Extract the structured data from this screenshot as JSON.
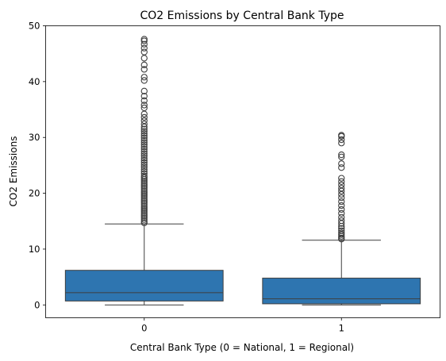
{
  "chart_data": {
    "type": "box",
    "title": "CO2 Emissions by Central Bank Type",
    "xlabel": "Central Bank Type (0 = National, 1 = Regional)",
    "ylabel": "CO2 Emissions",
    "categories": [
      "0",
      "1"
    ],
    "ylim": [
      -2.3,
      50
    ],
    "yticks": [
      0,
      10,
      20,
      30,
      40,
      50
    ],
    "grid": false,
    "box_color": "#2e75b0",
    "boxes": [
      {
        "category": "0",
        "whisker_low": 0.0,
        "q1": 0.7,
        "median": 2.2,
        "q3": 6.2,
        "whisker_high": 14.5,
        "outliers": [
          14.7,
          15.0,
          15.3,
          15.6,
          15.9,
          16.2,
          16.5,
          16.8,
          17.1,
          17.4,
          17.7,
          18.0,
          18.3,
          18.6,
          18.9,
          19.2,
          19.5,
          19.8,
          20.1,
          20.4,
          20.7,
          21.0,
          21.3,
          21.6,
          21.9,
          22.2,
          22.5,
          22.8,
          23.1,
          23.5,
          23.9,
          24.3,
          24.7,
          25.1,
          25.5,
          25.9,
          26.3,
          26.7,
          27.1,
          27.5,
          27.9,
          28.3,
          28.7,
          29.1,
          29.5,
          29.9,
          30.3,
          30.7,
          31.1,
          31.5,
          31.9,
          32.4,
          33.0,
          33.6,
          34.2,
          35.3,
          35.8,
          36.6,
          37.4,
          38.3,
          40.2,
          40.8,
          42.2,
          43.0,
          44.2,
          45.3,
          46.0,
          46.7,
          47.3,
          47.6
        ]
      },
      {
        "category": "1",
        "whisker_low": 0.0,
        "q1": 0.2,
        "median": 1.1,
        "q3": 4.8,
        "whisker_high": 11.6,
        "outliers": [
          11.8,
          12.0,
          12.3,
          12.6,
          12.9,
          13.3,
          13.7,
          14.1,
          14.6,
          15.1,
          15.7,
          16.4,
          17.1,
          17.8,
          18.5,
          19.2,
          19.8,
          20.4,
          20.9,
          21.5,
          22.1,
          22.7,
          24.6,
          25.3,
          26.5,
          26.9,
          29.0,
          29.6,
          30.2,
          30.4
        ]
      }
    ]
  }
}
